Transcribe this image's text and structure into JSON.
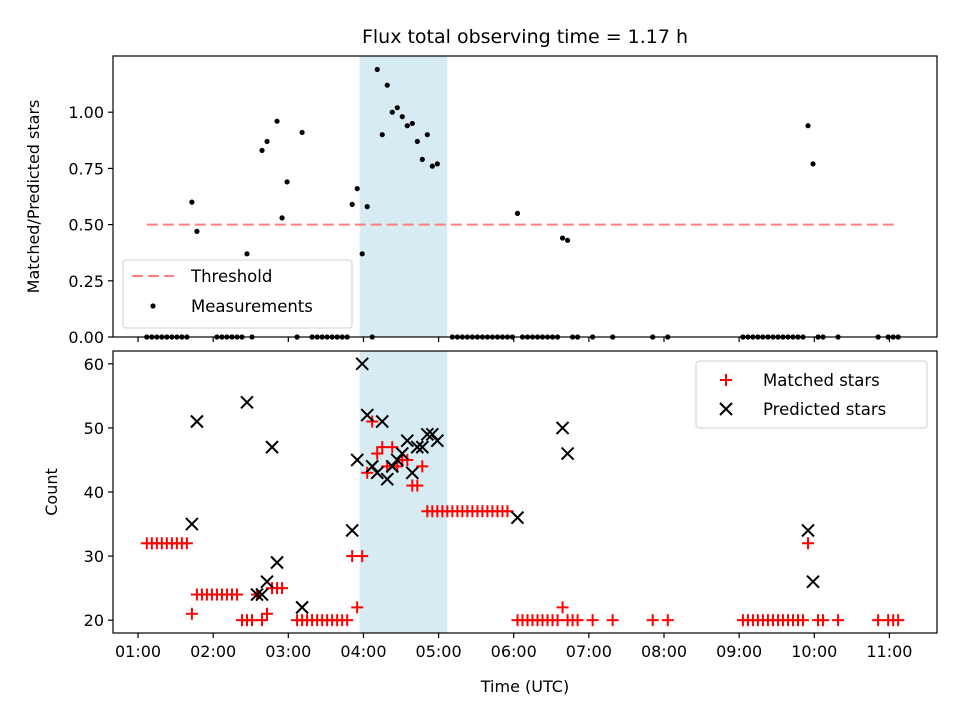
{
  "chart_data": [
    {
      "type": "scatter",
      "title": "Flux total observing time = 1.17 h",
      "xlabel": "",
      "ylabel": "Matched/Predicted stars",
      "xlim": [
        "00:40",
        "11:38"
      ],
      "ylim": [
        0,
        1.25
      ],
      "y_ticks": [
        "0.00",
        "0.25",
        "0.50",
        "0.75",
        "1.00"
      ],
      "legend_placement": "lower-left",
      "highlight_span": [
        "03:57",
        "05:07"
      ],
      "threshold": {
        "name": "Threshold",
        "value": 0.5,
        "x_range": [
          "01:07",
          "11:07"
        ],
        "color": "#ff8080"
      },
      "measurements": {
        "name": "Measurements",
        "color": "#000000",
        "points": [
          [
            "01:07",
            0
          ],
          [
            "01:11",
            0
          ],
          [
            "01:15",
            0
          ],
          [
            "01:19",
            0
          ],
          [
            "01:23",
            0
          ],
          [
            "01:27",
            0
          ],
          [
            "01:31",
            0
          ],
          [
            "01:35",
            0
          ],
          [
            "01:39",
            0
          ],
          [
            "01:43",
            0.6
          ],
          [
            "01:47",
            0.47
          ],
          [
            "02:03",
            0
          ],
          [
            "02:07",
            0
          ],
          [
            "02:11",
            0
          ],
          [
            "02:15",
            0
          ],
          [
            "02:19",
            0
          ],
          [
            "02:23",
            0
          ],
          [
            "02:27",
            0.37
          ],
          [
            "02:31",
            0
          ],
          [
            "02:39",
            0.83
          ],
          [
            "02:43",
            0.87
          ],
          [
            "02:51",
            0.96
          ],
          [
            "02:55",
            0.53
          ],
          [
            "02:59",
            0.69
          ],
          [
            "03:07",
            0
          ],
          [
            "03:11",
            0.91
          ],
          [
            "03:19",
            0
          ],
          [
            "03:23",
            0
          ],
          [
            "03:27",
            0
          ],
          [
            "03:31",
            0
          ],
          [
            "03:35",
            0
          ],
          [
            "03:39",
            0
          ],
          [
            "03:43",
            0
          ],
          [
            "03:47",
            0
          ],
          [
            "03:51",
            0.59
          ],
          [
            "03:55",
            0.66
          ],
          [
            "03:59",
            0.37
          ],
          [
            "04:03",
            0.58
          ],
          [
            "04:07",
            0
          ],
          [
            "04:11",
            1.19
          ],
          [
            "04:15",
            0.9
          ],
          [
            "04:19",
            1.12
          ],
          [
            "04:23",
            1.0
          ],
          [
            "04:27",
            1.02
          ],
          [
            "04:31",
            0.98
          ],
          [
            "04:35",
            0.94
          ],
          [
            "04:39",
            0.95
          ],
          [
            "04:43",
            0.87
          ],
          [
            "04:47",
            0.79
          ],
          [
            "04:51",
            0.9
          ],
          [
            "04:55",
            0.76
          ],
          [
            "04:59",
            0.77
          ],
          [
            "05:11",
            0
          ],
          [
            "05:15",
            0
          ],
          [
            "05:19",
            0
          ],
          [
            "05:23",
            0
          ],
          [
            "05:27",
            0
          ],
          [
            "05:31",
            0
          ],
          [
            "05:35",
            0
          ],
          [
            "05:39",
            0
          ],
          [
            "05:43",
            0
          ],
          [
            "05:47",
            0
          ],
          [
            "05:51",
            0
          ],
          [
            "05:55",
            0
          ],
          [
            "05:59",
            0
          ],
          [
            "06:03",
            0.55
          ],
          [
            "06:07",
            0
          ],
          [
            "06:11",
            0
          ],
          [
            "06:15",
            0
          ],
          [
            "06:19",
            0
          ],
          [
            "06:23",
            0
          ],
          [
            "06:27",
            0
          ],
          [
            "06:31",
            0
          ],
          [
            "06:35",
            0
          ],
          [
            "06:39",
            0.44
          ],
          [
            "06:43",
            0.43
          ],
          [
            "06:47",
            0
          ],
          [
            "06:51",
            0
          ],
          [
            "07:03",
            0
          ],
          [
            "07:19",
            0
          ],
          [
            "07:51",
            0
          ],
          [
            "08:03",
            0
          ],
          [
            "09:03",
            0
          ],
          [
            "09:07",
            0
          ],
          [
            "09:11",
            0
          ],
          [
            "09:15",
            0
          ],
          [
            "09:19",
            0
          ],
          [
            "09:23",
            0
          ],
          [
            "09:27",
            0
          ],
          [
            "09:31",
            0
          ],
          [
            "09:35",
            0
          ],
          [
            "09:39",
            0
          ],
          [
            "09:43",
            0
          ],
          [
            "09:47",
            0
          ],
          [
            "09:51",
            0
          ],
          [
            "09:55",
            0.94
          ],
          [
            "09:59",
            0.77
          ],
          [
            "10:03",
            0
          ],
          [
            "10:07",
            0
          ],
          [
            "10:19",
            0
          ],
          [
            "10:51",
            0
          ],
          [
            "10:59",
            0
          ],
          [
            "11:03",
            0
          ],
          [
            "11:07",
            0
          ]
        ]
      }
    },
    {
      "type": "scatter",
      "title": "",
      "xlabel": "Time (UTC)",
      "ylabel": "Count",
      "xlim": [
        "00:40",
        "11:38"
      ],
      "ylim": [
        18,
        62
      ],
      "x_ticks": [
        "01:00",
        "02:00",
        "03:00",
        "04:00",
        "05:00",
        "06:00",
        "07:00",
        "08:00",
        "09:00",
        "10:00",
        "11:00"
      ],
      "y_ticks": [
        "20",
        "30",
        "40",
        "50",
        "60"
      ],
      "legend_placement": "top-right",
      "highlight_span": [
        "03:57",
        "05:07"
      ],
      "series": [
        {
          "name": "Matched stars",
          "marker": "plus",
          "color": "#ff0000",
          "points": [
            [
              "01:07",
              32
            ],
            [
              "01:11",
              32
            ],
            [
              "01:15",
              32
            ],
            [
              "01:19",
              32
            ],
            [
              "01:23",
              32
            ],
            [
              "01:27",
              32
            ],
            [
              "01:31",
              32
            ],
            [
              "01:35",
              32
            ],
            [
              "01:39",
              32
            ],
            [
              "01:43",
              21
            ],
            [
              "01:47",
              24
            ],
            [
              "01:51",
              24
            ],
            [
              "01:55",
              24
            ],
            [
              "01:59",
              24
            ],
            [
              "02:03",
              24
            ],
            [
              "02:07",
              24
            ],
            [
              "02:11",
              24
            ],
            [
              "02:15",
              24
            ],
            [
              "02:19",
              24
            ],
            [
              "02:23",
              20
            ],
            [
              "02:27",
              20
            ],
            [
              "02:31",
              20
            ],
            [
              "02:35",
              24
            ],
            [
              "02:39",
              20
            ],
            [
              "02:43",
              21
            ],
            [
              "02:47",
              25
            ],
            [
              "02:51",
              25
            ],
            [
              "02:55",
              25
            ],
            [
              "03:07",
              20
            ],
            [
              "03:11",
              20
            ],
            [
              "03:15",
              20
            ],
            [
              "03:19",
              20
            ],
            [
              "03:23",
              20
            ],
            [
              "03:27",
              20
            ],
            [
              "03:31",
              20
            ],
            [
              "03:35",
              20
            ],
            [
              "03:39",
              20
            ],
            [
              "03:43",
              20
            ],
            [
              "03:47",
              20
            ],
            [
              "03:51",
              30
            ],
            [
              "03:55",
              22
            ],
            [
              "03:59",
              30
            ],
            [
              "04:03",
              43
            ],
            [
              "04:07",
              51
            ],
            [
              "04:11",
              46
            ],
            [
              "04:15",
              47
            ],
            [
              "04:19",
              44
            ],
            [
              "04:23",
              47
            ],
            [
              "04:27",
              44
            ],
            [
              "04:31",
              45
            ],
            [
              "04:35",
              45
            ],
            [
              "04:39",
              41
            ],
            [
              "04:43",
              41
            ],
            [
              "04:47",
              44
            ],
            [
              "04:51",
              37
            ],
            [
              "04:55",
              37
            ],
            [
              "04:59",
              37
            ],
            [
              "05:03",
              37
            ],
            [
              "05:07",
              37
            ],
            [
              "05:11",
              37
            ],
            [
              "05:15",
              37
            ],
            [
              "05:19",
              37
            ],
            [
              "05:23",
              37
            ],
            [
              "05:27",
              37
            ],
            [
              "05:31",
              37
            ],
            [
              "05:35",
              37
            ],
            [
              "05:39",
              37
            ],
            [
              "05:43",
              37
            ],
            [
              "05:47",
              37
            ],
            [
              "05:51",
              37
            ],
            [
              "05:55",
              37
            ],
            [
              "06:03",
              20
            ],
            [
              "06:07",
              20
            ],
            [
              "06:11",
              20
            ],
            [
              "06:15",
              20
            ],
            [
              "06:19",
              20
            ],
            [
              "06:23",
              20
            ],
            [
              "06:27",
              20
            ],
            [
              "06:31",
              20
            ],
            [
              "06:35",
              20
            ],
            [
              "06:39",
              22
            ],
            [
              "06:43",
              20
            ],
            [
              "06:47",
              20
            ],
            [
              "06:51",
              20
            ],
            [
              "07:03",
              20
            ],
            [
              "07:19",
              20
            ],
            [
              "07:51",
              20
            ],
            [
              "08:03",
              20
            ],
            [
              "09:03",
              20
            ],
            [
              "09:07",
              20
            ],
            [
              "09:11",
              20
            ],
            [
              "09:15",
              20
            ],
            [
              "09:19",
              20
            ],
            [
              "09:23",
              20
            ],
            [
              "09:27",
              20
            ],
            [
              "09:31",
              20
            ],
            [
              "09:35",
              20
            ],
            [
              "09:39",
              20
            ],
            [
              "09:43",
              20
            ],
            [
              "09:47",
              20
            ],
            [
              "09:51",
              20
            ],
            [
              "09:55",
              32
            ],
            [
              "10:03",
              20
            ],
            [
              "10:07",
              20
            ],
            [
              "10:19",
              20
            ],
            [
              "10:51",
              20
            ],
            [
              "10:59",
              20
            ],
            [
              "11:03",
              20
            ],
            [
              "11:07",
              20
            ]
          ]
        },
        {
          "name": "Predicted stars",
          "marker": "x",
          "color": "#000000",
          "points": [
            [
              "01:43",
              35
            ],
            [
              "01:47",
              51
            ],
            [
              "02:27",
              54
            ],
            [
              "02:35",
              24
            ],
            [
              "02:39",
              24
            ],
            [
              "02:43",
              26
            ],
            [
              "02:47",
              47
            ],
            [
              "02:51",
              29
            ],
            [
              "03:11",
              22
            ],
            [
              "03:51",
              34
            ],
            [
              "03:55",
              45
            ],
            [
              "03:59",
              60
            ],
            [
              "04:03",
              52
            ],
            [
              "04:07",
              44
            ],
            [
              "04:11",
              43
            ],
            [
              "04:15",
              51
            ],
            [
              "04:19",
              42
            ],
            [
              "04:23",
              44
            ],
            [
              "04:27",
              45
            ],
            [
              "04:31",
              46
            ],
            [
              "04:35",
              48
            ],
            [
              "04:39",
              43
            ],
            [
              "04:43",
              47
            ],
            [
              "04:47",
              47
            ],
            [
              "04:51",
              49
            ],
            [
              "04:55",
              49
            ],
            [
              "04:59",
              48
            ],
            [
              "06:03",
              36
            ],
            [
              "06:39",
              50
            ],
            [
              "06:43",
              46
            ],
            [
              "09:55",
              34
            ],
            [
              "09:59",
              26
            ]
          ]
        }
      ]
    }
  ]
}
